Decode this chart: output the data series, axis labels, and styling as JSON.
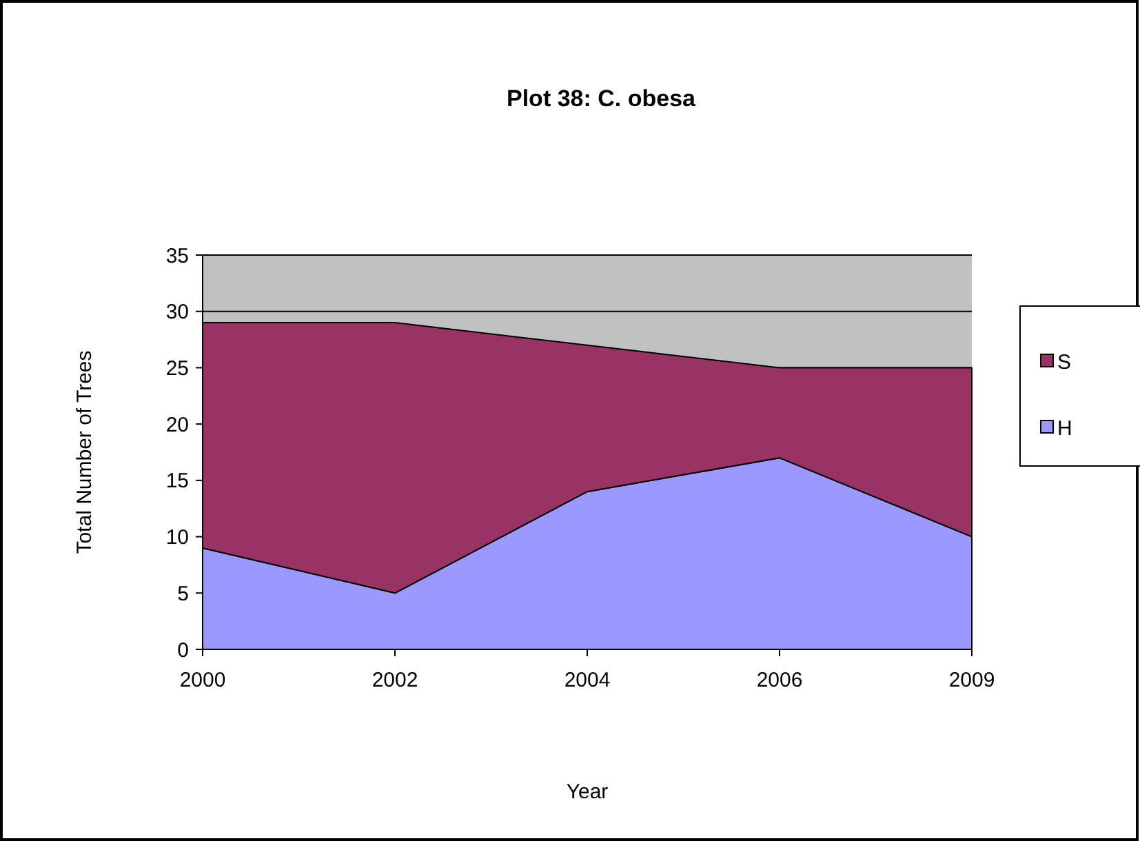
{
  "chart_data": {
    "type": "area",
    "title": "Plot 38: C. obesa",
    "xlabel": "Year",
    "ylabel": "Total Number of Trees",
    "categories": [
      "2000",
      "2002",
      "2004",
      "2006",
      "2009"
    ],
    "stacked": true,
    "series": [
      {
        "name": "H",
        "color": "#9999ff",
        "values": [
          9,
          5,
          14,
          17,
          10
        ]
      },
      {
        "name": "S",
        "color": "#993366",
        "values": [
          20,
          24,
          13,
          8,
          15
        ]
      }
    ],
    "ylim": [
      0,
      35
    ],
    "yticks": [
      0,
      5,
      10,
      15,
      20,
      25,
      30,
      35
    ],
    "grid": "y",
    "legend": "right"
  }
}
